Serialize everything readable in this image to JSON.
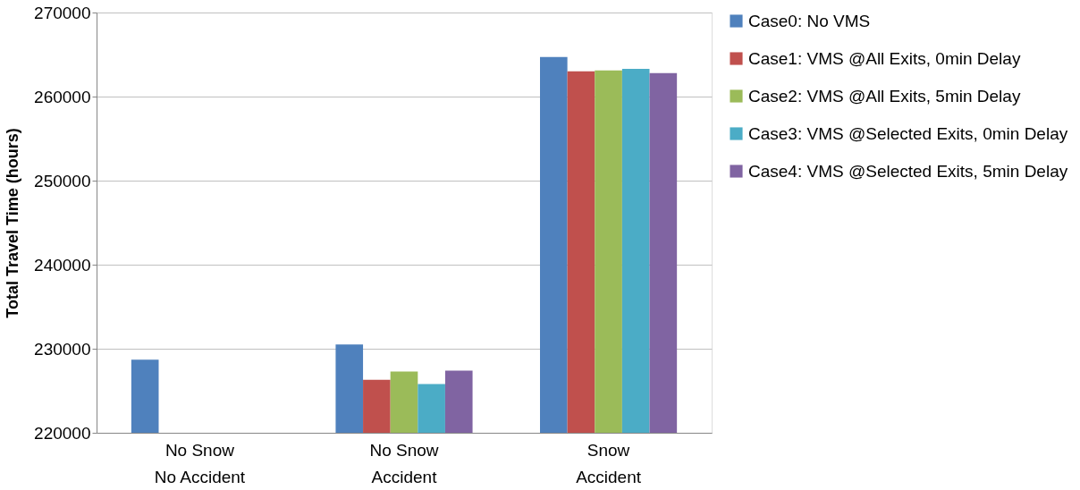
{
  "chart_data": {
    "type": "bar",
    "ylabel": "Total Travel Time (hours)",
    "categories": [
      "No Snow\nNo Accident",
      "No Snow\nAccident",
      "Snow\nAccident"
    ],
    "series": [
      {
        "name": "Case0: No VMS",
        "color": "#4f81bd",
        "values": [
          228700,
          230500,
          264700
        ]
      },
      {
        "name": "Case1: VMS @All Exits, 0min Delay",
        "color": "#c0504d",
        "values": [
          null,
          226300,
          263000
        ]
      },
      {
        "name": "Case2: VMS @All Exits, 5min Delay",
        "color": "#9bbb59",
        "values": [
          null,
          227300,
          263100
        ]
      },
      {
        "name": "Case3: VMS @Selected Exits, 0min Delay",
        "color": "#4bacc6",
        "values": [
          null,
          225800,
          263300
        ]
      },
      {
        "name": "Case4: VMS @Selected Exits, 5min Delay",
        "color": "#8064a2",
        "values": [
          null,
          227400,
          262800
        ]
      }
    ],
    "ylim": [
      220000,
      270000
    ],
    "yticks": [
      220000,
      230000,
      240000,
      250000,
      260000,
      270000
    ],
    "grid": "y",
    "legend": "right"
  }
}
